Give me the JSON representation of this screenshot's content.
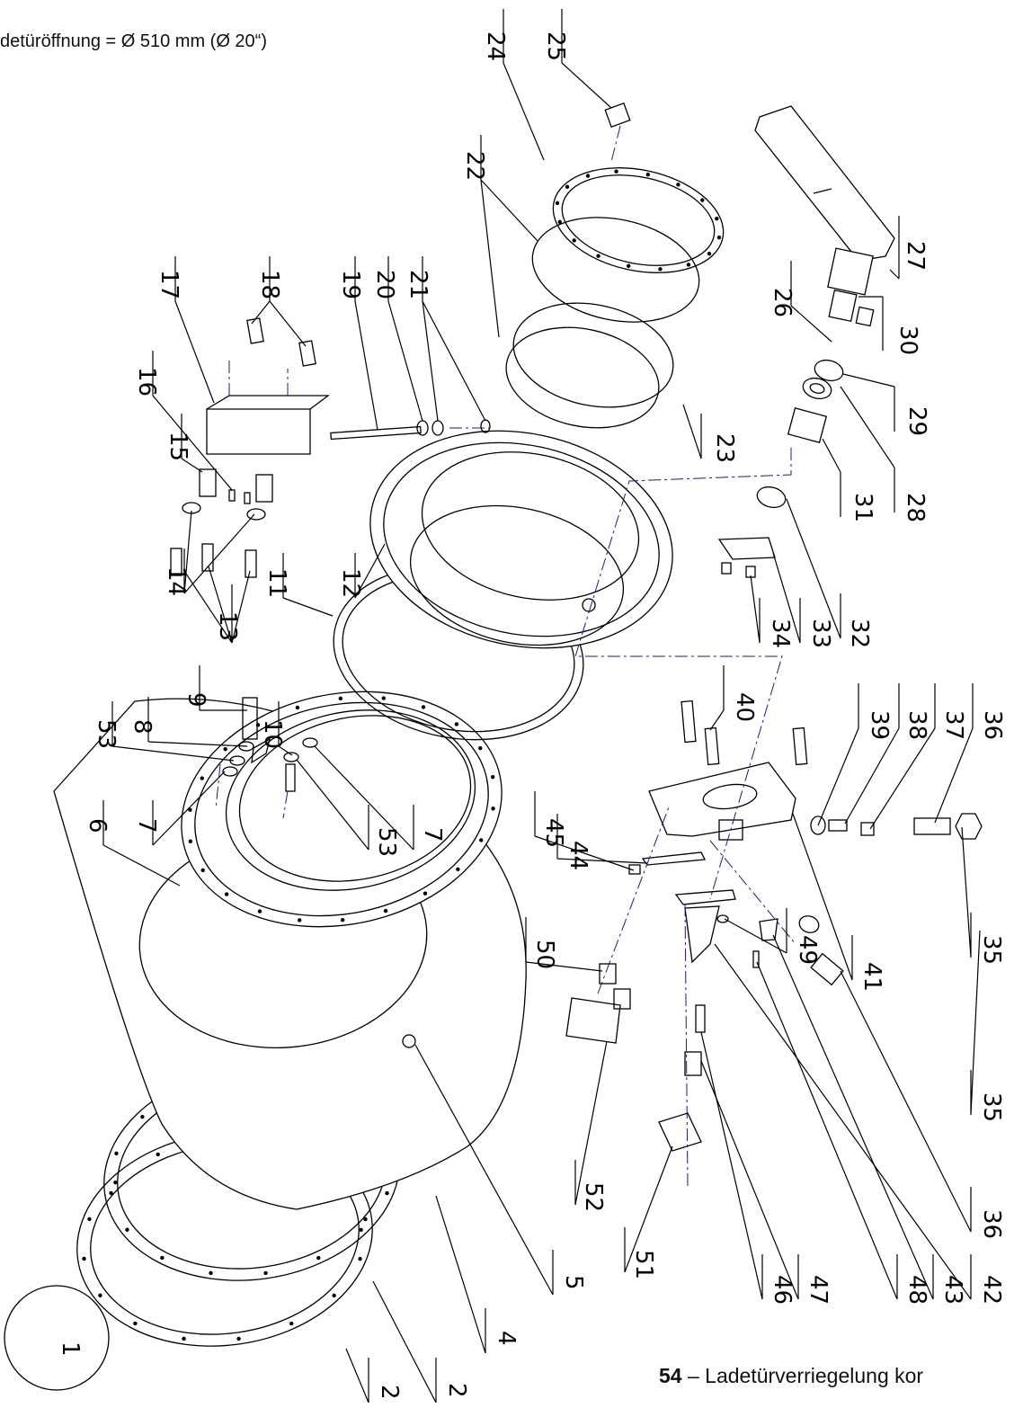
{
  "header_caption": "detüröffnung = Ø 510 mm (Ø 20“)",
  "footer_caption": {
    "number": "54",
    "text": " – Ladetürverriegelung kor"
  },
  "part_numbers": [
    "24",
    "25",
    "22",
    "17",
    "18",
    "19",
    "20",
    "21",
    "27",
    "26",
    "30",
    "16",
    "15",
    "14",
    "13",
    "11",
    "12",
    "29",
    "23",
    "28",
    "31",
    "9",
    "53",
    "8",
    "10",
    "7",
    "6",
    "32",
    "33",
    "34",
    "40",
    "39",
    "38",
    "37",
    "36",
    "45",
    "44",
    "50",
    "49",
    "41",
    "35",
    "52",
    "51",
    "46",
    "47",
    "48",
    "43",
    "42",
    "5",
    "4",
    "2",
    "1"
  ]
}
